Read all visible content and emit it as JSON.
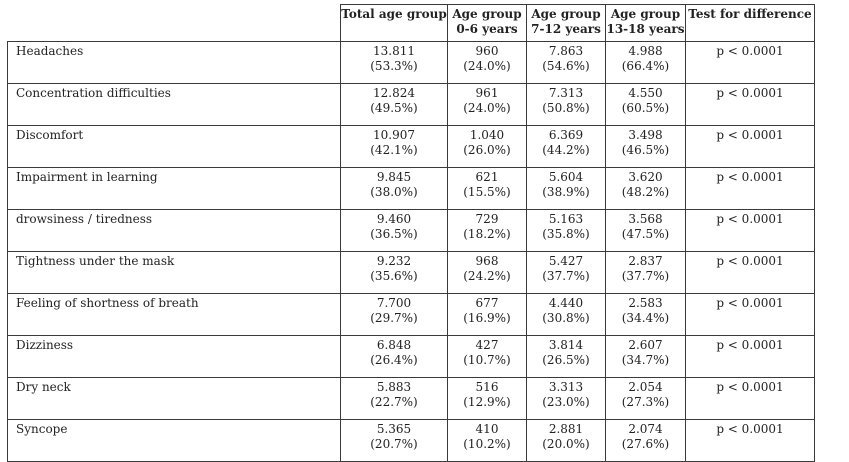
{
  "header": {
    "total": [
      "Total age group"
    ],
    "g1": [
      "Age group",
      "0-6 years"
    ],
    "g2": [
      "Age group",
      "7-12 years"
    ],
    "g3": [
      "Age group",
      "13-18 years"
    ],
    "test": [
      "Test for difference"
    ]
  },
  "rows": [
    {
      "label": "Headaches",
      "total": [
        "13.811",
        "(53.3%)"
      ],
      "g1": [
        "960",
        "(24.0%)"
      ],
      "g2": [
        "7.863",
        "(54.6%)"
      ],
      "g3": [
        "4.988",
        "(66.4%)"
      ],
      "p": "p < 0.0001"
    },
    {
      "label": "Concentration difficulties",
      "total": [
        "12.824",
        "(49.5%)"
      ],
      "g1": [
        "961",
        "(24.0%)"
      ],
      "g2": [
        "7.313",
        "(50.8%)"
      ],
      "g3": [
        "4.550",
        "(60.5%)"
      ],
      "p": "p < 0.0001"
    },
    {
      "label": "Discomfort",
      "total": [
        "10.907",
        "(42.1%)"
      ],
      "g1": [
        "1.040",
        "(26.0%)"
      ],
      "g2": [
        "6.369",
        "(44.2%)"
      ],
      "g3": [
        "3.498",
        "(46.5%)"
      ],
      "p": "p < 0.0001"
    },
    {
      "label": "Impairment in learning",
      "total": [
        "9.845",
        "(38.0%)"
      ],
      "g1": [
        "621",
        "(15.5%)"
      ],
      "g2": [
        "5.604",
        "(38.9%)"
      ],
      "g3": [
        "3.620",
        "(48.2%)"
      ],
      "p": "p < 0.0001"
    },
    {
      "label": "drowsiness / tiredness",
      "total": [
        "9.460",
        "(36.5%)"
      ],
      "g1": [
        "729",
        "(18.2%)"
      ],
      "g2": [
        "5.163",
        "(35.8%)"
      ],
      "g3": [
        "3.568",
        "(47.5%)"
      ],
      "p": "p < 0.0001"
    },
    {
      "label": "Tightness under the mask",
      "total": [
        "9.232",
        "(35.6%)"
      ],
      "g1": [
        "968",
        "(24.2%)"
      ],
      "g2": [
        "5.427",
        "(37.7%)"
      ],
      "g3": [
        "2.837",
        "(37.7%)"
      ],
      "p": "p < 0.0001"
    },
    {
      "label": "Feeling of shortness of breath",
      "total": [
        "7.700",
        "(29.7%)"
      ],
      "g1": [
        "677",
        "(16.9%)"
      ],
      "g2": [
        "4.440",
        "(30.8%)"
      ],
      "g3": [
        "2.583",
        "(34.4%)"
      ],
      "p": "p < 0.0001"
    },
    {
      "label": "Dizziness",
      "total": [
        "6.848",
        "(26.4%)"
      ],
      "g1": [
        "427",
        "(10.7%)"
      ],
      "g2": [
        "3.814",
        "(26.5%)"
      ],
      "g3": [
        "2.607",
        "(34.7%)"
      ],
      "p": "p < 0.0001"
    },
    {
      "label": "Dry neck",
      "total": [
        "5.883",
        "(22.7%)"
      ],
      "g1": [
        "516",
        "(12.9%)"
      ],
      "g2": [
        "3.313",
        "(23.0%)"
      ],
      "g3": [
        "2.054",
        "(27.3%)"
      ],
      "p": "p < 0.0001"
    },
    {
      "label": "Syncope",
      "total": [
        "5.365",
        "(20.7%)"
      ],
      "g1": [
        "410",
        "(10.2%)"
      ],
      "g2": [
        "2.881",
        "(20.0%)"
      ],
      "g3": [
        "2.074",
        "(27.6%)"
      ],
      "p": "p < 0.0001"
    }
  ]
}
